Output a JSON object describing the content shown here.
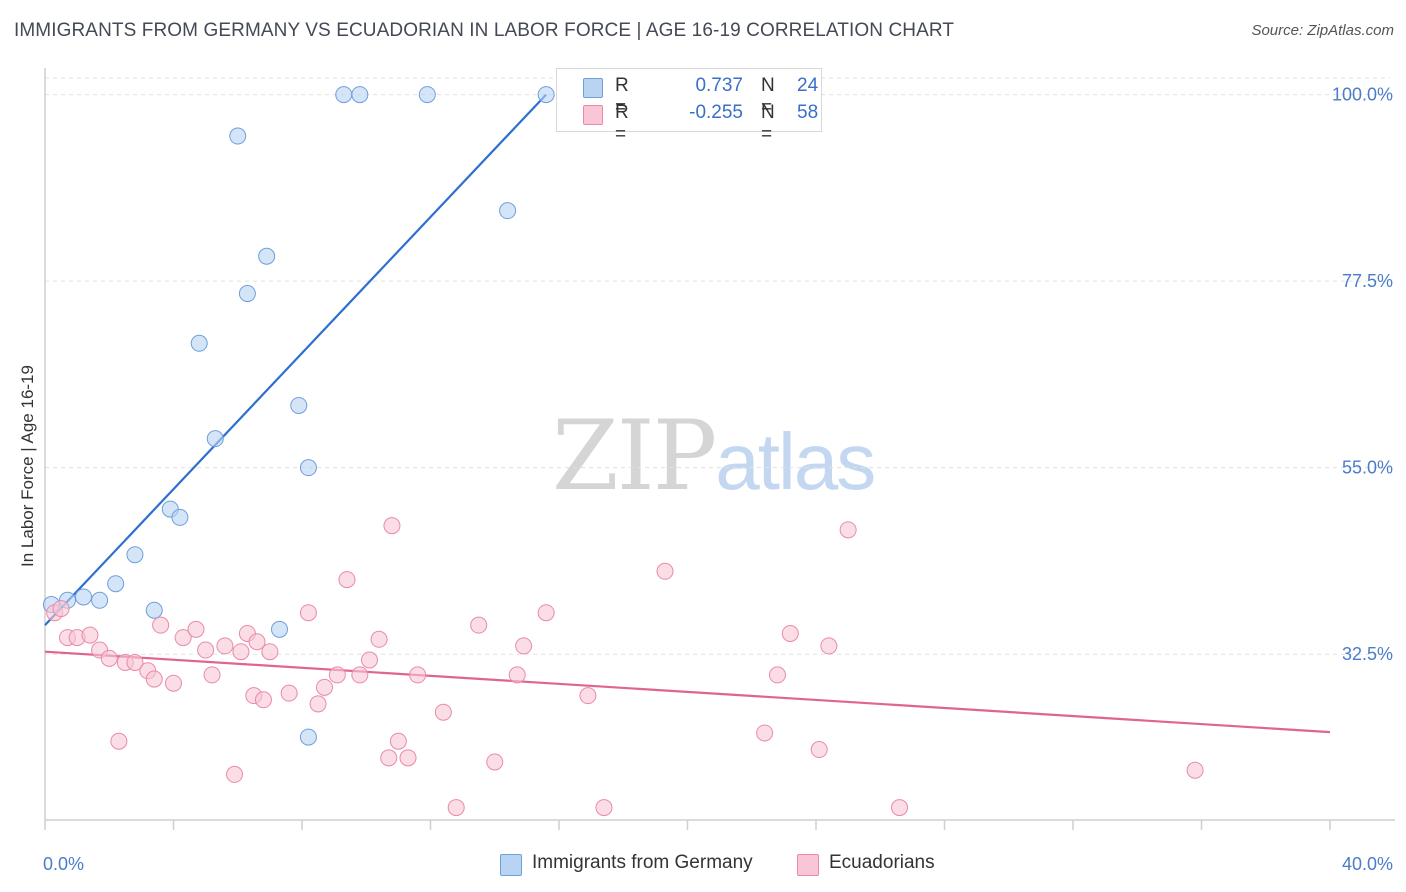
{
  "title": "IMMIGRANTS FROM GERMANY VS ECUADORIAN IN LABOR FORCE | AGE 16-19 CORRELATION CHART",
  "source": "Source: ZipAtlas.com",
  "watermark": {
    "zip": "ZIP",
    "atlas": "atlas"
  },
  "colors": {
    "blue_fill": "#b9d3f3",
    "blue_stroke": "#6f9edc",
    "blue_line": "#2e6fd0",
    "pink_fill": "#f8c6d6",
    "pink_stroke": "#e98aaa",
    "pink_line": "#e0648f",
    "tick_text": "#4a7cc9",
    "grid": "#e1e1e1"
  },
  "legend": {
    "rows": [
      {
        "r_label": "R =",
        "r_value": "0.737",
        "n_label": "N =",
        "n_value": "24"
      },
      {
        "r_label": "R =",
        "r_value": "-0.255",
        "n_label": "N =",
        "n_value": "58"
      }
    ]
  },
  "bottom_legend": [
    "Immigrants from Germany",
    "Ecuadorians"
  ],
  "chart_data": {
    "type": "scatter",
    "title": "IMMIGRANTS FROM GERMANY VS ECUADORIAN IN LABOR FORCE | AGE 16-19 CORRELATION CHART",
    "xlabel": "",
    "ylabel": "In Labor Force | Age 16-19",
    "xlim": [
      0,
      40
    ],
    "ylim": [
      12.5,
      102.0
    ],
    "x_tick_labels": [
      "0.0%",
      "40.0%"
    ],
    "y_ticks": [
      32.5,
      55.0,
      77.5,
      100.0
    ],
    "y_tick_labels": [
      "32.5%",
      "55.0%",
      "77.5%",
      "100.0%"
    ],
    "x_ticks_minor": [
      0,
      4,
      8,
      12,
      16,
      20,
      24,
      28,
      32,
      36,
      40
    ],
    "grid": true,
    "legend_placement": "top-center",
    "series": [
      {
        "name": "Immigrants from Germany",
        "points": [
          [
            0.2,
            38.5
          ],
          [
            0.7,
            39.0
          ],
          [
            1.2,
            39.4
          ],
          [
            1.7,
            39.0
          ],
          [
            2.2,
            41.0
          ],
          [
            2.8,
            44.5
          ],
          [
            3.4,
            37.8
          ],
          [
            3.9,
            50.0
          ],
          [
            4.2,
            49.0
          ],
          [
            4.8,
            70.0
          ],
          [
            5.3,
            58.5
          ],
          [
            6.0,
            95.0
          ],
          [
            6.3,
            76.0
          ],
          [
            6.9,
            80.5
          ],
          [
            7.3,
            35.5
          ],
          [
            7.9,
            62.5
          ],
          [
            8.2,
            55.0
          ],
          [
            8.2,
            22.5
          ],
          [
            9.3,
            100.0
          ],
          [
            9.8,
            100.0
          ],
          [
            11.9,
            100.0
          ],
          [
            14.4,
            86.0
          ],
          [
            15.6,
            100.0
          ],
          [
            16.4,
            100.0
          ]
        ],
        "trend": {
          "x": [
            0.0,
            15.6
          ],
          "y": [
            36.0,
            100.0
          ]
        }
      },
      {
        "name": "Ecuadorians",
        "points": [
          [
            0.3,
            37.5
          ],
          [
            0.5,
            38.0
          ],
          [
            0.7,
            34.5
          ],
          [
            1.0,
            34.5
          ],
          [
            1.4,
            34.8
          ],
          [
            1.7,
            33.0
          ],
          [
            2.0,
            32.0
          ],
          [
            2.3,
            22.0
          ],
          [
            2.5,
            31.5
          ],
          [
            2.8,
            31.5
          ],
          [
            3.2,
            30.5
          ],
          [
            3.4,
            29.5
          ],
          [
            3.6,
            36.0
          ],
          [
            4.0,
            29.0
          ],
          [
            4.3,
            34.5
          ],
          [
            4.7,
            35.5
          ],
          [
            5.0,
            33.0
          ],
          [
            5.2,
            30.0
          ],
          [
            5.6,
            33.5
          ],
          [
            5.9,
            18.0
          ],
          [
            6.1,
            32.8
          ],
          [
            6.3,
            35.0
          ],
          [
            6.5,
            27.5
          ],
          [
            6.6,
            34.0
          ],
          [
            6.8,
            27.0
          ],
          [
            7.0,
            32.8
          ],
          [
            7.6,
            27.8
          ],
          [
            8.2,
            37.5
          ],
          [
            8.5,
            26.5
          ],
          [
            8.7,
            28.5
          ],
          [
            9.1,
            30.0
          ],
          [
            9.4,
            41.5
          ],
          [
            9.8,
            30.0
          ],
          [
            10.1,
            31.8
          ],
          [
            10.4,
            34.3
          ],
          [
            10.7,
            20.0
          ],
          [
            10.8,
            48.0
          ],
          [
            11.0,
            22.0
          ],
          [
            11.3,
            20.0
          ],
          [
            11.6,
            30.0
          ],
          [
            12.4,
            25.5
          ],
          [
            12.8,
            14.0
          ],
          [
            13.5,
            36.0
          ],
          [
            14.0,
            19.5
          ],
          [
            14.7,
            30.0
          ],
          [
            14.9,
            33.5
          ],
          [
            15.6,
            37.5
          ],
          [
            16.9,
            27.5
          ],
          [
            17.4,
            14.0
          ],
          [
            19.3,
            42.5
          ],
          [
            22.4,
            23.0
          ],
          [
            22.8,
            30.0
          ],
          [
            23.2,
            35.0
          ],
          [
            24.1,
            21.0
          ],
          [
            24.4,
            33.5
          ],
          [
            25.0,
            47.5
          ],
          [
            26.6,
            14.0
          ],
          [
            35.8,
            18.5
          ]
        ],
        "trend": {
          "x": [
            0.0,
            40.0
          ],
          "y": [
            32.8,
            23.1
          ]
        }
      }
    ]
  }
}
